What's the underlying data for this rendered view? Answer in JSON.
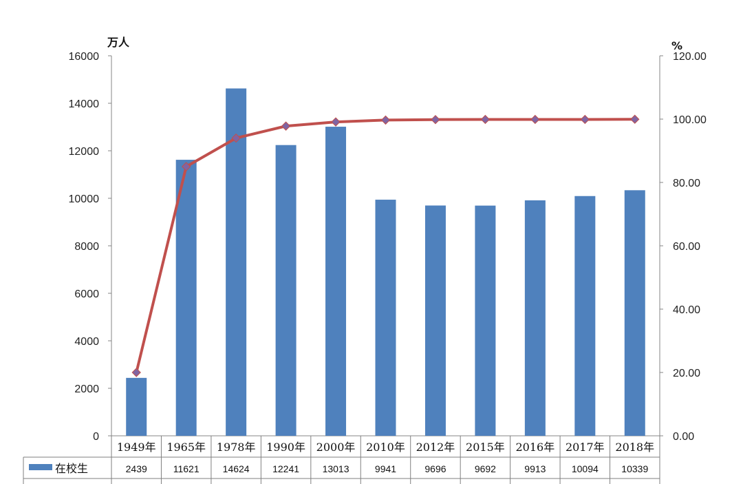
{
  "chart_data": {
    "type": "bar",
    "categories": [
      "1949年",
      "1965年",
      "1978年",
      "1990年",
      "2000年",
      "2010年",
      "2012年",
      "2015年",
      "2016年",
      "2017年",
      "2018年"
    ],
    "series": [
      {
        "name": "在校生",
        "type": "bar",
        "axis": "left",
        "values": [
          2439,
          11621,
          14624,
          12241,
          13013,
          9941,
          9696,
          9692,
          9913,
          10094,
          10339
        ],
        "color": "#4F81BD"
      },
      {
        "type": "line",
        "axis": "right",
        "values": [
          20.0,
          85.0,
          94.0,
          97.8,
          99.1,
          99.7,
          99.85,
          99.9,
          99.9,
          99.9,
          99.95
        ],
        "color": "#C0504D",
        "marker_color": "#8064A2"
      }
    ],
    "yaxis_left": {
      "unit": "万人",
      "range": [
        0,
        16000
      ],
      "ticks": [
        "0",
        "2000",
        "4000",
        "6000",
        "8000",
        "10000",
        "12000",
        "14000",
        "16000"
      ]
    },
    "yaxis_right": {
      "unit": "%",
      "range": [
        0,
        120
      ],
      "ticks": [
        "0.00",
        "20.00",
        "40.00",
        "60.00",
        "80.00",
        "100.00",
        "120.00"
      ]
    },
    "grid": false,
    "legend": "data-table"
  }
}
